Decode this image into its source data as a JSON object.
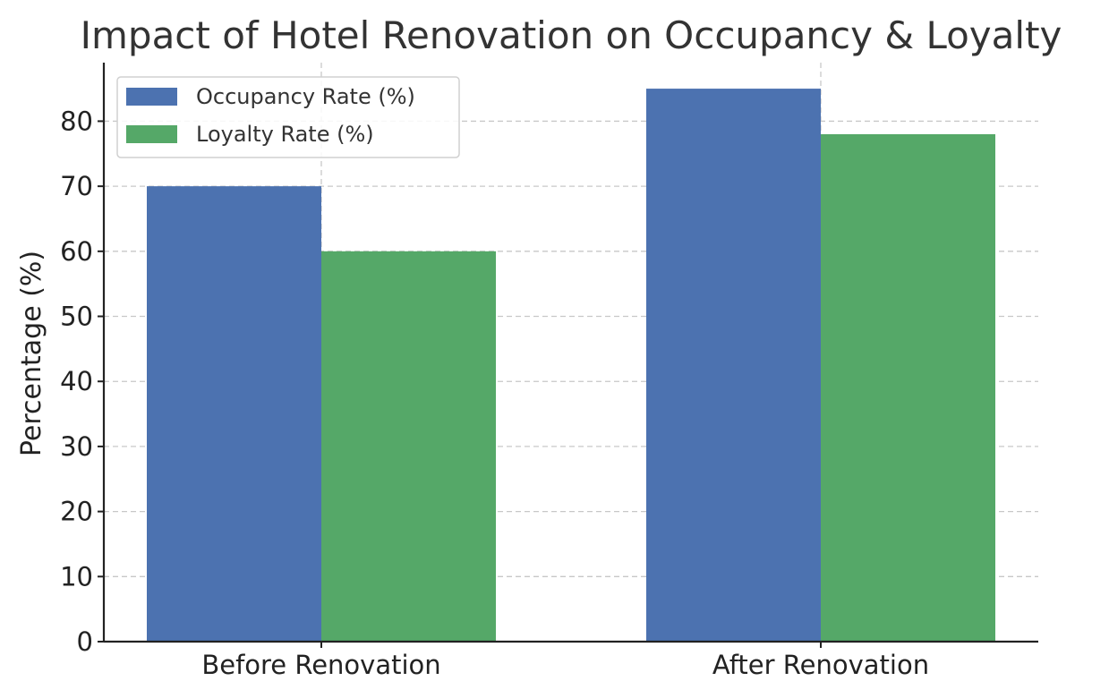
{
  "chart_data": {
    "type": "bar",
    "title": "Impact of Hotel Renovation on Occupancy & Loyalty",
    "xlabel": "",
    "ylabel": "Percentage (%)",
    "categories": [
      "Before Renovation",
      "After Renovation"
    ],
    "series": [
      {
        "name": "Occupancy Rate (%)",
        "values": [
          70,
          85
        ],
        "color": "#4c72b0"
      },
      {
        "name": "Loyalty Rate (%)",
        "values": [
          60,
          78
        ],
        "color": "#55a868"
      }
    ],
    "ylim": [
      0,
      89
    ],
    "yticks": [
      0,
      10,
      20,
      30,
      40,
      50,
      60,
      70,
      80
    ],
    "grid": true,
    "legend": "top-left"
  }
}
